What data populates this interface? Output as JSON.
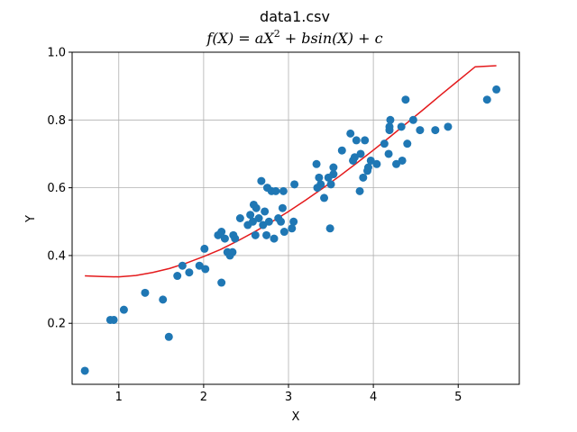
{
  "chart_data": {
    "type": "scatter",
    "title": "data1.csv",
    "subtitle_parts": {
      "lhs": "f(X)",
      "eq": " = ",
      "a": "aX",
      "exp": "2",
      "plus1": " + ",
      "b": "bsin(X)",
      "plus2": " + ",
      "c": "c"
    },
    "xlabel": "X",
    "ylabel": "Y",
    "xlim": [
      0.45,
      5.72
    ],
    "ylim": [
      0.02,
      1.0
    ],
    "xticks": [
      1,
      2,
      3,
      4,
      5
    ],
    "yticks": [
      0.2,
      0.4,
      0.6,
      0.8,
      1.0
    ],
    "xtick_labels": [
      "1",
      "2",
      "3",
      "4",
      "5"
    ],
    "ytick_labels": [
      "0.2",
      "0.4",
      "0.6",
      "0.8",
      "1.0"
    ],
    "grid": true,
    "colors": {
      "points": "#1f77b4",
      "fit_line": "#e41a1c",
      "grid": "#b0b0b0",
      "axes": "#000000"
    },
    "series": [
      {
        "kind": "scatter",
        "points": [
          [
            0.6,
            0.06
          ],
          [
            0.9,
            0.21
          ],
          [
            0.94,
            0.21
          ],
          [
            1.06,
            0.24
          ],
          [
            1.31,
            0.29
          ],
          [
            1.52,
            0.27
          ],
          [
            1.59,
            0.16
          ],
          [
            1.69,
            0.34
          ],
          [
            1.75,
            0.37
          ],
          [
            1.83,
            0.35
          ],
          [
            1.95,
            0.37
          ],
          [
            2.01,
            0.42
          ],
          [
            2.02,
            0.36
          ],
          [
            2.17,
            0.46
          ],
          [
            2.21,
            0.32
          ],
          [
            2.21,
            0.47
          ],
          [
            2.25,
            0.45
          ],
          [
            2.28,
            0.41
          ],
          [
            2.31,
            0.4
          ],
          [
            2.34,
            0.41
          ],
          [
            2.35,
            0.46
          ],
          [
            2.37,
            0.45
          ],
          [
            2.43,
            0.51
          ],
          [
            2.52,
            0.49
          ],
          [
            2.55,
            0.52
          ],
          [
            2.58,
            0.5
          ],
          [
            2.59,
            0.55
          ],
          [
            2.61,
            0.46
          ],
          [
            2.62,
            0.54
          ],
          [
            2.65,
            0.51
          ],
          [
            2.68,
            0.62
          ],
          [
            2.7,
            0.49
          ],
          [
            2.72,
            0.53
          ],
          [
            2.74,
            0.46
          ],
          [
            2.75,
            0.6
          ],
          [
            2.77,
            0.5
          ],
          [
            2.8,
            0.59
          ],
          [
            2.83,
            0.45
          ],
          [
            2.85,
            0.59
          ],
          [
            2.88,
            0.51
          ],
          [
            2.91,
            0.5
          ],
          [
            2.93,
            0.54
          ],
          [
            2.94,
            0.59
          ],
          [
            2.95,
            0.47
          ],
          [
            3.04,
            0.48
          ],
          [
            3.06,
            0.5
          ],
          [
            3.07,
            0.61
          ],
          [
            3.33,
            0.67
          ],
          [
            3.34,
            0.6
          ],
          [
            3.36,
            0.63
          ],
          [
            3.38,
            0.61
          ],
          [
            3.42,
            0.57
          ],
          [
            3.47,
            0.63
          ],
          [
            3.49,
            0.48
          ],
          [
            3.5,
            0.61
          ],
          [
            3.53,
            0.66
          ],
          [
            3.53,
            0.64
          ],
          [
            3.63,
            0.71
          ],
          [
            3.73,
            0.76
          ],
          [
            3.76,
            0.68
          ],
          [
            3.78,
            0.69
          ],
          [
            3.8,
            0.74
          ],
          [
            3.84,
            0.59
          ],
          [
            3.85,
            0.7
          ],
          [
            3.88,
            0.63
          ],
          [
            3.9,
            0.74
          ],
          [
            3.93,
            0.65
          ],
          [
            3.94,
            0.66
          ],
          [
            3.97,
            0.68
          ],
          [
            4.04,
            0.67
          ],
          [
            4.13,
            0.73
          ],
          [
            4.18,
            0.7
          ],
          [
            4.19,
            0.77
          ],
          [
            4.19,
            0.78
          ],
          [
            4.2,
            0.8
          ],
          [
            4.27,
            0.67
          ],
          [
            4.33,
            0.78
          ],
          [
            4.34,
            0.68
          ],
          [
            4.38,
            0.86
          ],
          [
            4.4,
            0.73
          ],
          [
            4.47,
            0.8
          ],
          [
            4.55,
            0.77
          ],
          [
            4.73,
            0.77
          ],
          [
            4.88,
            0.78
          ],
          [
            5.34,
            0.86
          ],
          [
            5.45,
            0.89
          ]
        ]
      },
      {
        "kind": "line",
        "points": [
          [
            0.6,
            0.34
          ],
          [
            0.8,
            0.338
          ],
          [
            1.0,
            0.337
          ],
          [
            1.2,
            0.341
          ],
          [
            1.4,
            0.35
          ],
          [
            1.6,
            0.362
          ],
          [
            1.8,
            0.378
          ],
          [
            2.0,
            0.397
          ],
          [
            2.2,
            0.418
          ],
          [
            2.4,
            0.443
          ],
          [
            2.6,
            0.47
          ],
          [
            2.8,
            0.499
          ],
          [
            3.0,
            0.53
          ],
          [
            3.2,
            0.563
          ],
          [
            3.4,
            0.598
          ],
          [
            3.6,
            0.634
          ],
          [
            3.8,
            0.672
          ],
          [
            4.0,
            0.711
          ],
          [
            4.2,
            0.751
          ],
          [
            4.4,
            0.792
          ],
          [
            4.6,
            0.833
          ],
          [
            4.8,
            0.875
          ],
          [
            5.0,
            0.916
          ],
          [
            5.2,
            0.957
          ],
          [
            5.45,
            0.96
          ]
        ]
      }
    ]
  }
}
